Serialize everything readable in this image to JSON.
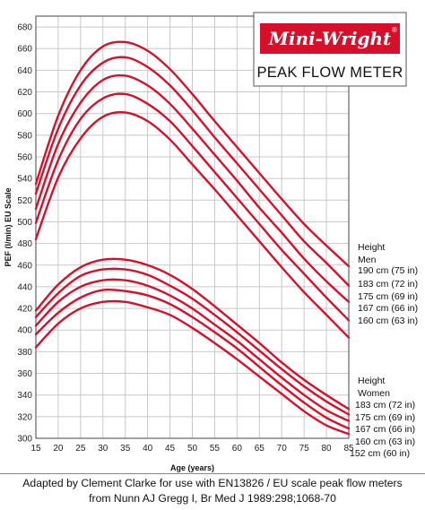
{
  "logo": {
    "brand": "Mini-Wright",
    "registered": "®",
    "product": "PEAK FLOW METER",
    "brand_color": "#d6102b"
  },
  "chart_data": {
    "type": "line",
    "xlabel": "Age (years)",
    "ylabel": "PEF (l/min) EU Scale",
    "xlim": [
      15,
      85
    ],
    "ylim": [
      300,
      690
    ],
    "xticks": [
      15,
      20,
      25,
      30,
      35,
      40,
      45,
      50,
      55,
      60,
      65,
      70,
      75,
      80,
      85
    ],
    "yticks": [
      300,
      320,
      340,
      360,
      380,
      400,
      420,
      440,
      460,
      480,
      500,
      520,
      540,
      560,
      580,
      600,
      620,
      640,
      660,
      680
    ],
    "grid": true,
    "line_color": "#d6102b",
    "x": [
      15,
      20,
      25,
      30,
      35,
      40,
      45,
      50,
      55,
      60,
      65,
      70,
      75,
      80,
      85
    ],
    "series": [
      {
        "group": "men",
        "name": "190 cm (75 in)",
        "values": [
          535,
          598,
          640,
          662,
          666,
          658,
          641,
          618,
          593,
          569,
          545,
          521,
          498,
          478,
          459
        ]
      },
      {
        "group": "men",
        "name": "183 cm (72 in)",
        "values": [
          526,
          586,
          626,
          647,
          652,
          643,
          626,
          603,
          578,
          554,
          530,
          506,
          482,
          462,
          441
        ]
      },
      {
        "group": "men",
        "name": "175 cm (69 in)",
        "values": [
          512,
          572,
          610,
          631,
          635,
          626,
          609,
          586,
          562,
          538,
          513,
          490,
          466,
          445,
          426
        ]
      },
      {
        "group": "men",
        "name": "167 cm (66 in)",
        "values": [
          499,
          557,
          595,
          614,
          618,
          609,
          593,
          570,
          546,
          522,
          498,
          474,
          452,
          430,
          409
        ]
      },
      {
        "group": "men",
        "name": "160 cm (63 in)",
        "values": [
          484,
          541,
          577,
          597,
          601,
          593,
          576,
          553,
          530,
          506,
          482,
          458,
          435,
          414,
          393
        ]
      },
      {
        "group": "women",
        "name": "183 cm (72 in)",
        "values": [
          418,
          442,
          458,
          465,
          465,
          460,
          451,
          438,
          422,
          405,
          388,
          370,
          354,
          340,
          327
        ]
      },
      {
        "group": "women",
        "name": "175 cm (69 in)",
        "values": [
          412,
          434,
          450,
          456,
          456,
          451,
          441,
          429,
          414,
          398,
          381,
          364,
          348,
          334,
          322
        ]
      },
      {
        "group": "women",
        "name": "167 cm (66 in)",
        "values": [
          404,
          426,
          440,
          446,
          446,
          441,
          432,
          420,
          405,
          390,
          373,
          356,
          340,
          326,
          316
        ]
      },
      {
        "group": "women",
        "name": "160 cm (63 in)",
        "values": [
          396,
          416,
          430,
          437,
          436,
          432,
          424,
          412,
          398,
          383,
          366,
          349,
          333,
          319,
          309
        ]
      },
      {
        "group": "women",
        "name": "152 cm (60 in)",
        "values": [
          384,
          406,
          420,
          426,
          426,
          421,
          414,
          402,
          388,
          373,
          357,
          341,
          325,
          312,
          304
        ]
      }
    ],
    "legend": {
      "men_heading": [
        "Height",
        "Men"
      ],
      "women_heading": [
        "Height",
        "Women"
      ],
      "men": [
        "190 cm (75 in)",
        "183 cm (72 in)",
        "175 cm (69 in)",
        "167 cm (66 in)",
        "160 cm (63 in)"
      ],
      "women": [
        "183 cm (72 in)",
        "175 cm (69 in)",
        "167 cm (66 in)",
        "160 cm (63 in)",
        "152 cm (60 in)"
      ],
      "placement": "right"
    }
  },
  "caption": {
    "line1": "Adapted by Clement Clarke for use with EN13826 / EU scale peak flow meters",
    "line2": "from Nunn AJ Gregg I, Br Med J 1989:298;1068-70"
  }
}
